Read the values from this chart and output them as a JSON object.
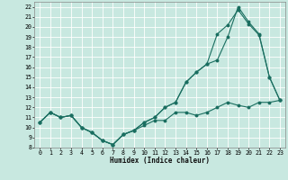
{
  "xlabel": "Humidex (Indice chaleur)",
  "xlim": [
    -0.5,
    23.5
  ],
  "ylim": [
    8,
    22.5
  ],
  "xticks": [
    0,
    1,
    2,
    3,
    4,
    5,
    6,
    7,
    8,
    9,
    10,
    11,
    12,
    13,
    14,
    15,
    16,
    17,
    18,
    19,
    20,
    21,
    22,
    23
  ],
  "yticks": [
    8,
    9,
    10,
    11,
    12,
    13,
    14,
    15,
    16,
    17,
    18,
    19,
    20,
    21,
    22
  ],
  "background_color": "#c8e8e0",
  "grid_color": "#ffffff",
  "line_color": "#1a6e60",
  "line1_x": [
    0,
    1,
    2,
    3,
    4,
    5,
    6,
    7,
    8,
    9,
    10,
    11,
    12,
    13,
    14,
    15,
    16,
    17,
    18,
    19,
    20,
    21,
    22,
    23
  ],
  "line1_y": [
    10.5,
    11.5,
    11.0,
    11.2,
    10.0,
    9.5,
    8.7,
    8.3,
    9.3,
    9.7,
    10.2,
    10.7,
    10.7,
    11.5,
    11.5,
    11.2,
    11.5,
    12.0,
    12.5,
    12.2,
    12.0,
    12.5,
    12.5,
    12.7
  ],
  "line2_x": [
    0,
    1,
    2,
    3,
    4,
    5,
    6,
    7,
    8,
    9,
    10,
    11,
    12,
    13,
    14,
    15,
    16,
    17,
    18,
    19,
    20,
    21,
    22,
    23
  ],
  "line2_y": [
    10.5,
    11.5,
    11.0,
    11.2,
    10.0,
    9.5,
    8.7,
    8.3,
    9.3,
    9.7,
    10.5,
    11.0,
    12.0,
    12.5,
    14.5,
    15.5,
    16.3,
    19.3,
    20.2,
    21.7,
    20.3,
    19.2,
    15.0,
    12.7
  ],
  "line3_x": [
    0,
    1,
    2,
    3,
    4,
    5,
    6,
    7,
    8,
    9,
    10,
    11,
    12,
    13,
    14,
    15,
    16,
    17,
    18,
    19,
    20,
    21,
    22,
    23
  ],
  "line3_y": [
    10.5,
    11.5,
    11.0,
    11.2,
    10.0,
    9.5,
    8.7,
    8.3,
    9.3,
    9.7,
    10.5,
    11.0,
    12.0,
    12.5,
    14.5,
    15.5,
    16.3,
    16.7,
    19.0,
    22.0,
    20.5,
    19.3,
    15.0,
    12.7
  ],
  "xlabel_fontsize": 5.5,
  "tick_fontsize": 4.8
}
